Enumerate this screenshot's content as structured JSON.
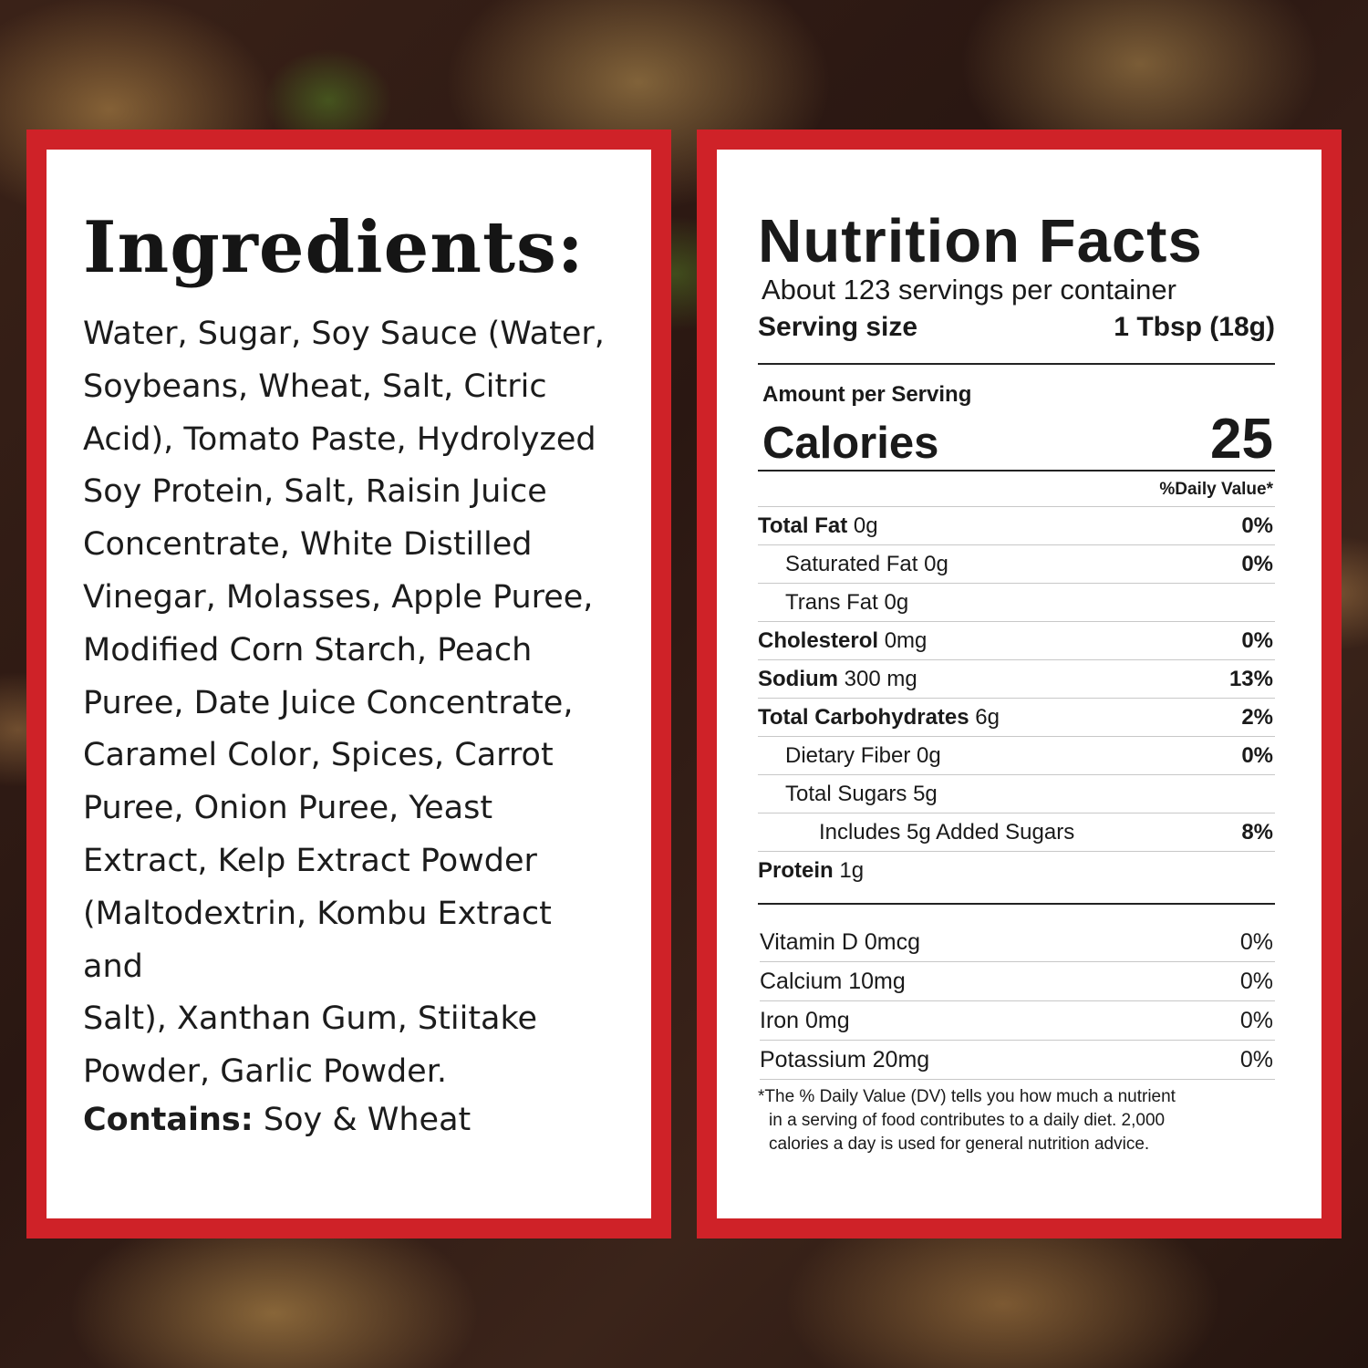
{
  "ingredients": {
    "title": "Ingredients:",
    "lines": [
      "Water, Sugar, Soy Sauce (Water,",
      "Soybeans, Wheat, Salt, Citric",
      "Acid), Tomato Paste, Hydrolyzed",
      "Soy Protein, Salt, Raisin Juice",
      "Concentrate, White Distilled",
      "Vinegar, Molasses, Apple Puree,",
      "Modified Corn Starch, Peach",
      "Puree, Date Juice Concentrate,",
      "Caramel Color, Spices, Carrot",
      "Puree, Onion Puree, Yeast",
      "Extract, Kelp Extract Powder",
      "(Maltodextrin, Kombu Extract and",
      "Salt), Xanthan Gum, Stiitake",
      "Powder, Garlic Powder."
    ],
    "contains": "Contains: Soy & Wheat"
  },
  "nutrition": {
    "title": "Nutrition Facts",
    "servings_per_container": "About 123 servings per container",
    "serving_size_label": "Serving size",
    "serving_size_value": "1 Tbsp (18g)",
    "amount_per_serving": "Amount per Serving",
    "calories_label": "Calories",
    "calories_value": "25",
    "daily_value_header": "%Daily Value*",
    "nutrients": [
      {
        "name": "Total Fat",
        "amount": "0g",
        "pct": "0%",
        "bold": true,
        "indent": 0
      },
      {
        "name": "Saturated Fat",
        "amount": "0g",
        "pct": "0%",
        "bold": false,
        "indent": 1
      },
      {
        "name": "Trans Fat",
        "amount": "0g",
        "pct": "",
        "bold": false,
        "indent": 1
      },
      {
        "name": "Cholesterol",
        "amount": "0mg",
        "pct": "0%",
        "bold": true,
        "indent": 0
      },
      {
        "name": "Sodium",
        "amount": "300 mg",
        "pct": "13%",
        "bold": true,
        "indent": 0
      },
      {
        "name": "Total Carbohydrates",
        "amount": "6g",
        "pct": "2%",
        "bold": true,
        "indent": 0
      },
      {
        "name": "Dietary Fiber",
        "amount": "0g",
        "pct": "0%",
        "bold": false,
        "indent": 1
      },
      {
        "name": "Total Sugars",
        "amount": "5g",
        "pct": "",
        "bold": false,
        "indent": 1
      },
      {
        "name": "Includes 5g Added Sugars",
        "amount": "",
        "pct": "8%",
        "bold": false,
        "indent": 2
      },
      {
        "name": "Protein",
        "amount": "1g",
        "pct": "",
        "bold": true,
        "indent": 0
      }
    ],
    "vitamins": [
      {
        "name": "Vitamin D 0mcg",
        "pct": "0%"
      },
      {
        "name": "Calcium 10mg",
        "pct": "0%"
      },
      {
        "name": "Iron 0mg",
        "pct": "0%"
      },
      {
        "name": "Potassium 20mg",
        "pct": "0%"
      }
    ],
    "footnote_lines": [
      "*The % Daily Value (DV) tells you how much a nutrient",
      "in a serving of food contributes to a daily diet. 2,000",
      "calories a day is used for general nutrition advice."
    ]
  },
  "colors": {
    "frame_red": "#cf2228",
    "panel_white": "#ffffff",
    "text": "#1a1a1a"
  }
}
